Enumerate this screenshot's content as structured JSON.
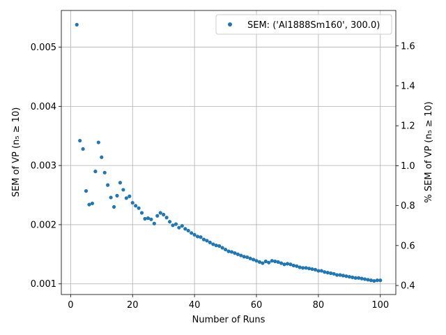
{
  "chart_data": {
    "type": "scatter",
    "xlabel": "Number of Runs",
    "ylabel": "SEM of VP (n₅ ≥ 10)",
    "ylabel_right": "% SEM of VP (n₅ ≥ 10)",
    "xlim": [
      -3.0,
      105.0
    ],
    "ylim": [
      0.00082,
      0.00562
    ],
    "ylim_right": [
      0.35476,
      1.77744
    ],
    "x_ticks": [
      0,
      20,
      40,
      60,
      80,
      100
    ],
    "y_ticks": [
      0.001,
      0.002,
      0.003,
      0.004,
      0.005
    ],
    "y_tick_labels": [
      "0.001",
      "0.002",
      "0.003",
      "0.004",
      "0.005"
    ],
    "y_ticks_right": [
      0.4,
      0.6,
      0.8,
      1.0,
      1.2,
      1.4,
      1.6
    ],
    "y_tick_labels_right": [
      "0.4",
      "0.6",
      "0.8",
      "1.0",
      "1.2",
      "1.4",
      "1.6"
    ],
    "grid": true,
    "legend_position": "top-right",
    "marker_color": "#1f77b4",
    "series": [
      {
        "name": "SEM: ('Al1888Sm160', 300.0)",
        "x": [
          2,
          3,
          4,
          5,
          6,
          7,
          8,
          9,
          10,
          11,
          12,
          13,
          14,
          15,
          16,
          17,
          18,
          19,
          20,
          21,
          22,
          23,
          24,
          25,
          26,
          27,
          28,
          29,
          30,
          31,
          32,
          33,
          34,
          35,
          36,
          37,
          38,
          39,
          40,
          41,
          42,
          43,
          44,
          45,
          46,
          47,
          48,
          49,
          50,
          51,
          52,
          53,
          54,
          55,
          56,
          57,
          58,
          59,
          60,
          61,
          62,
          63,
          64,
          65,
          66,
          67,
          68,
          69,
          70,
          71,
          72,
          73,
          74,
          75,
          76,
          77,
          78,
          79,
          80,
          81,
          82,
          83,
          84,
          85,
          86,
          87,
          88,
          89,
          90,
          91,
          92,
          93,
          94,
          95,
          96,
          97,
          98,
          99,
          100
        ],
        "y": [
          0.00538,
          0.00342,
          0.00328,
          0.00257,
          0.00234,
          0.00236,
          0.0029,
          0.00339,
          0.00314,
          0.00288,
          0.00267,
          0.00246,
          0.0023,
          0.00249,
          0.00271,
          0.00259,
          0.00245,
          0.00248,
          0.00237,
          0.00232,
          0.00228,
          0.0022,
          0.0021,
          0.00211,
          0.00209,
          0.00202,
          0.00215,
          0.0022,
          0.00217,
          0.00212,
          0.00205,
          0.00199,
          0.00201,
          0.00195,
          0.00198,
          0.00193,
          0.0019,
          0.00186,
          0.00183,
          0.0018,
          0.00179,
          0.00175,
          0.00173,
          0.0017,
          0.00167,
          0.00165,
          0.00164,
          0.00161,
          0.00158,
          0.00155,
          0.00154,
          0.00152,
          0.0015,
          0.00148,
          0.00146,
          0.00145,
          0.00143,
          0.00141,
          0.00139,
          0.00137,
          0.00135,
          0.00138,
          0.00136,
          0.00139,
          0.00138,
          0.00137,
          0.00135,
          0.00133,
          0.00134,
          0.00133,
          0.00131,
          0.0013,
          0.00128,
          0.00127,
          0.00127,
          0.00126,
          0.00125,
          0.00124,
          0.00122,
          0.00122,
          0.0012,
          0.00119,
          0.00118,
          0.00117,
          0.00115,
          0.00115,
          0.00114,
          0.00113,
          0.00112,
          0.00111,
          0.0011,
          0.0011,
          0.00109,
          0.00108,
          0.00107,
          0.00106,
          0.00105,
          0.00106,
          0.00106
        ]
      }
    ]
  }
}
